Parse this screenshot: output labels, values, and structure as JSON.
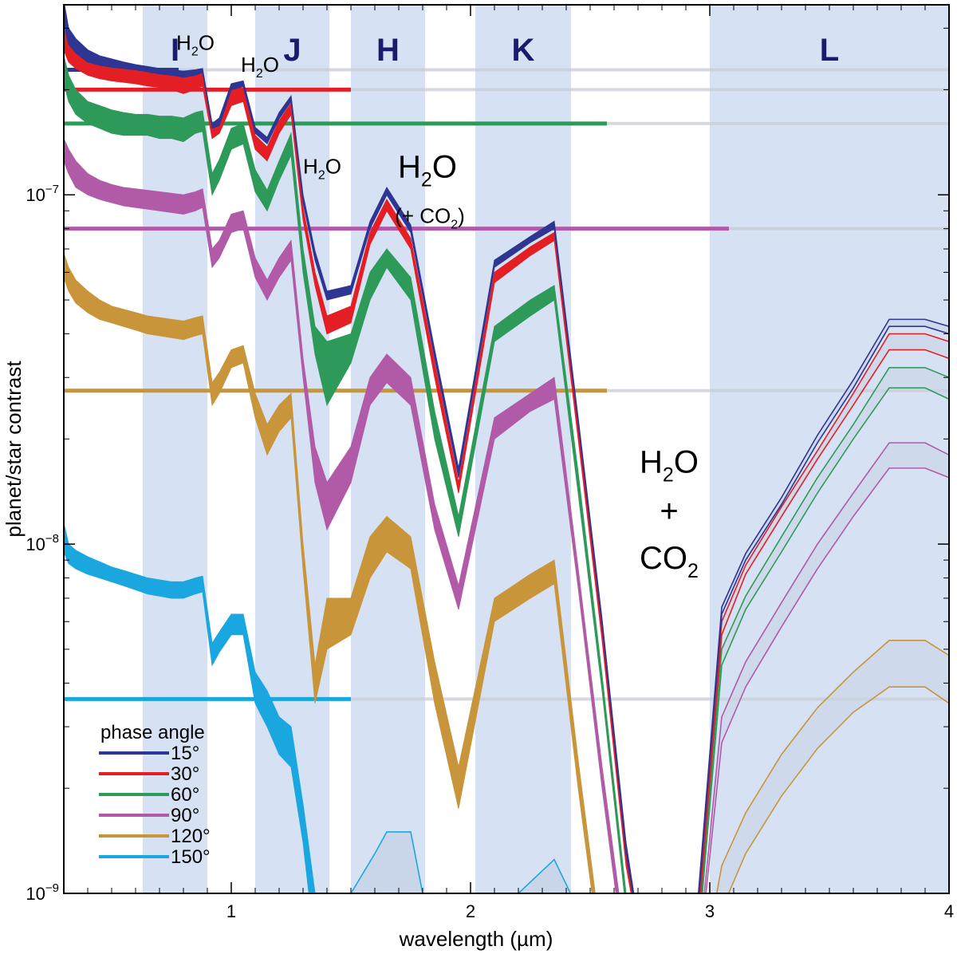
{
  "chart_data": {
    "type": "area",
    "xlabel": "wavelength (µm)",
    "ylabel": "planet/star contrast",
    "xlim": [
      0.3,
      4.0
    ],
    "ylim": [
      1e-09,
      3.5e-07
    ],
    "yscale": "log",
    "x_ticks": [
      "1",
      "2",
      "3",
      "4"
    ],
    "y_ticks": [
      {
        "value": 1e-07,
        "base": "10",
        "exp": "−7"
      },
      {
        "value": 1e-08,
        "base": "10",
        "exp": "−8"
      },
      {
        "value": 1e-09,
        "base": "10",
        "exp": "−9"
      }
    ],
    "bands": [
      {
        "label": "I",
        "x0": 0.63,
        "x1": 0.9
      },
      {
        "label": "J",
        "x0": 1.1,
        "x1": 1.41
      },
      {
        "label": "H",
        "x0": 1.5,
        "x1": 1.81
      },
      {
        "label": "K",
        "x0": 2.02,
        "x1": 2.42
      },
      {
        "label": "L",
        "x0": 3.0,
        "x1": 4.0
      }
    ],
    "annotations": [
      {
        "text": "H",
        "sub": "2",
        "tail": "O",
        "x": 0.85,
        "y": 2.6e-07,
        "size": 26
      },
      {
        "text": "H",
        "sub": "2",
        "tail": "O",
        "x": 1.12,
        "y": 2.25e-07,
        "size": 26
      },
      {
        "text": "H",
        "sub": "2",
        "tail": "O",
        "x": 1.38,
        "y": 1.15e-07,
        "size": 26
      },
      {
        "text": "H",
        "sub": "2",
        "tail": "O",
        "x": 1.82,
        "y": 1.12e-07,
        "size": 40
      },
      {
        "text": "(+ CO",
        "sub": "2",
        "tail": ")",
        "x": 1.83,
        "y": 8.3e-08,
        "size": 26
      },
      {
        "text": "H",
        "sub": "2",
        "tail": "O",
        "x": 2.83,
        "y": 1.6e-08,
        "size": 40
      },
      {
        "text": "+",
        "sub": "",
        "tail": "",
        "x": 2.83,
        "y": 1.16e-08,
        "size": 40
      },
      {
        "text": "CO",
        "sub": "2",
        "tail": "",
        "x": 2.83,
        "y": 8.5e-09,
        "size": 40
      }
    ],
    "legend_title": "phase angle",
    "x": [
      0.3,
      0.32,
      0.35,
      0.4,
      0.45,
      0.5,
      0.55,
      0.6,
      0.65,
      0.7,
      0.75,
      0.8,
      0.85,
      0.88,
      0.92,
      0.95,
      1.0,
      1.05,
      1.1,
      1.15,
      1.2,
      1.25,
      1.3,
      1.35,
      1.4,
      1.5,
      1.58,
      1.65,
      1.75,
      1.85,
      1.95,
      2.1,
      2.25,
      2.35,
      2.45,
      2.55,
      2.65,
      2.75,
      2.85,
      2.95,
      3.05,
      3.15,
      3.3,
      3.45,
      3.6,
      3.75,
      3.9,
      4.0
    ],
    "series": [
      {
        "name": "15°",
        "color": "#2e3592",
        "thin": false,
        "ceil": 2.28e-07,
        "clip": 0.78,
        "low": [
          3.1e-07,
          2.7e-07,
          2.55e-07,
          2.4e-07,
          2.35e-07,
          2.32e-07,
          2.3e-07,
          2.28e-07,
          2.25e-07,
          2.22e-07,
          2.2e-07,
          2.17e-07,
          2.2e-07,
          2.24e-07,
          1.55e-07,
          1.58e-07,
          2e-07,
          2.04e-07,
          1.5e-07,
          1.4e-07,
          1.65e-07,
          1.85e-07,
          9.5e-08,
          6.5e-08,
          5e-08,
          5.2e-08,
          8e-08,
          1e-07,
          7.8e-08,
          3.4e-08,
          1.55e-08,
          6.2e-08,
          7.3e-08,
          8e-08,
          2.2e-08,
          5.8e-09,
          1.3e-09,
          5e-10,
          5e-10,
          9e-10,
          6.3e-09,
          9e-09,
          1.3e-08,
          1.95e-08,
          2.8e-08,
          4.2e-08,
          4.2e-08,
          4e-08
        ],
        "high": [
          3.6e-07,
          3e-07,
          2.8e-07,
          2.6e-07,
          2.5e-07,
          2.45e-07,
          2.4e-07,
          2.36e-07,
          2.33e-07,
          2.3e-07,
          2.28e-07,
          2.26e-07,
          2.28e-07,
          2.3e-07,
          1.6e-07,
          1.66e-07,
          2.08e-07,
          2.12e-07,
          1.56e-07,
          1.46e-07,
          1.72e-07,
          1.92e-07,
          1e-07,
          6.9e-08,
          5.3e-08,
          5.5e-08,
          8.4e-08,
          1.05e-07,
          8.2e-08,
          3.6e-08,
          1.65e-08,
          6.5e-08,
          7.6e-08,
          8.4e-08,
          2.3e-08,
          6.1e-09,
          1.4e-09,
          5e-10,
          5e-10,
          9.5e-10,
          6.6e-09,
          9.4e-09,
          1.36e-08,
          2.05e-08,
          2.95e-08,
          4.4e-08,
          4.4e-08,
          4.2e-08
        ]
      },
      {
        "name": "30°",
        "color": "#e31e24",
        "thin": false,
        "ceil": 2e-07,
        "clip": 1.5,
        "low": [
          2.6e-07,
          2.4e-07,
          2.3e-07,
          2.2e-07,
          2.15e-07,
          2.12e-07,
          2.1e-07,
          2.08e-07,
          2.05e-07,
          2.03e-07,
          2e-07,
          1.95e-07,
          2e-07,
          2.05e-07,
          1.45e-07,
          1.5e-07,
          1.8e-07,
          1.85e-07,
          1.35e-07,
          1.25e-07,
          1.5e-07,
          1.7e-07,
          8.5e-08,
          5.5e-08,
          4e-08,
          4.3e-08,
          7.2e-08,
          9e-08,
          7e-08,
          3e-08,
          1.4e-08,
          5.6e-08,
          6.7e-08,
          7.4e-08,
          2e-08,
          5.3e-09,
          1.2e-09,
          5e-10,
          5e-10,
          8e-10,
          5.5e-09,
          8.2e-09,
          1.2e-08,
          1.75e-08,
          2.5e-08,
          3.6e-08,
          3.6e-08,
          3.4e-08
        ],
        "high": [
          3e-07,
          2.75e-07,
          2.6e-07,
          2.45e-07,
          2.4e-07,
          2.35e-07,
          2.32e-07,
          2.3e-07,
          2.27e-07,
          2.25e-07,
          2.22e-07,
          2.17e-07,
          2.22e-07,
          2.25e-07,
          1.58e-07,
          1.62e-07,
          1.98e-07,
          2.02e-07,
          1.48e-07,
          1.37e-07,
          1.63e-07,
          1.83e-07,
          9.2e-08,
          6e-08,
          4.5e-08,
          4.8e-08,
          7.8e-08,
          9.7e-08,
          7.5e-08,
          3.3e-08,
          1.5e-08,
          6e-08,
          7.1e-08,
          7.8e-08,
          2.15e-08,
          5.7e-09,
          1.3e-09,
          5e-10,
          5e-10,
          8.5e-10,
          6e-09,
          8.7e-09,
          1.28e-08,
          1.85e-08,
          2.7e-08,
          4e-08,
          4e-08,
          3.8e-08
        ]
      },
      {
        "name": "60°",
        "color": "#2e9a5a",
        "thin": false,
        "ceil": 1.6e-07,
        "clip": 2.57,
        "low": [
          2.1e-07,
          1.85e-07,
          1.7e-07,
          1.6e-07,
          1.55e-07,
          1.5e-07,
          1.48e-07,
          1.48e-07,
          1.48e-07,
          1.45e-07,
          1.45e-07,
          1.42e-07,
          1.5e-07,
          1.52e-07,
          1e-07,
          1.1e-07,
          1.35e-07,
          1.4e-07,
          1.02e-07,
          9e-08,
          1.1e-07,
          1.3e-07,
          6e-08,
          3.5e-08,
          2.5e-08,
          3.3e-08,
          5e-08,
          6.2e-08,
          5e-08,
          2e-08,
          1.05e-08,
          3.8e-08,
          4.5e-08,
          5e-08,
          1.4e-08,
          3.8e-09,
          9e-10,
          5e-10,
          5e-10,
          7e-10,
          4.5e-09,
          6.5e-09,
          9.5e-09,
          1.4e-08,
          2e-08,
          2.8e-08,
          2.8e-08,
          2.6e-08
        ],
        "high": [
          2.5e-07,
          2.2e-07,
          2e-07,
          1.85e-07,
          1.8e-07,
          1.75e-07,
          1.72e-07,
          1.7e-07,
          1.7e-07,
          1.68e-07,
          1.68e-07,
          1.66e-07,
          1.72e-07,
          1.74e-07,
          1.15e-07,
          1.26e-07,
          1.55e-07,
          1.6e-07,
          1.18e-07,
          1.03e-07,
          1.25e-07,
          1.5e-07,
          7e-08,
          4.2e-08,
          3.8e-08,
          4e-08,
          6e-08,
          7e-08,
          5.8e-08,
          2.4e-08,
          1.2e-08,
          4.2e-08,
          5e-08,
          5.5e-08,
          1.6e-08,
          4.2e-09,
          1e-09,
          5e-10,
          5e-10,
          7.5e-10,
          5e-09,
          7.1e-09,
          1.05e-08,
          1.55e-08,
          2.2e-08,
          3.2e-08,
          3.2e-08,
          3e-08
        ]
      },
      {
        "name": "90°",
        "color": "#b05aa8",
        "thin": false,
        "ceil": 8e-08,
        "clip": 3.08,
        "low": [
          1.25e-07,
          1.15e-07,
          1.05e-07,
          1e-07,
          9.7e-08,
          9.5e-08,
          9.3e-08,
          9.2e-08,
          9.1e-08,
          9e-08,
          8.9e-08,
          8.8e-08,
          9e-08,
          9.2e-08,
          6.2e-08,
          6.6e-08,
          7.8e-08,
          8e-08,
          5.8e-08,
          5e-08,
          5.8e-08,
          6.5e-08,
          3e-08,
          1.5e-08,
          1.1e-08,
          1.5e-08,
          2.5e-08,
          2.9e-08,
          2.5e-08,
          1.1e-08,
          6.5e-09,
          2e-08,
          2.4e-08,
          2.6e-08,
          7.5e-09,
          2e-09,
          6e-10,
          5e-10,
          5e-10,
          6e-10,
          2.7e-09,
          3.9e-09,
          5.8e-09,
          8.5e-09,
          1.2e-08,
          1.65e-08,
          1.65e-08,
          1.55e-08
        ],
        "high": [
          1.45e-07,
          1.35e-07,
          1.25e-07,
          1.15e-07,
          1.1e-07,
          1.07e-07,
          1.05e-07,
          1.04e-07,
          1.03e-07,
          1.02e-07,
          1.01e-07,
          1e-07,
          1.02e-07,
          1.04e-07,
          7e-08,
          7.4e-08,
          8.8e-08,
          9e-08,
          6.6e-08,
          5.7e-08,
          6.6e-08,
          7.4e-08,
          3.4e-08,
          1.9e-08,
          1.5e-08,
          1.9e-08,
          3e-08,
          3.5e-08,
          3e-08,
          1.3e-08,
          7.6e-09,
          2.3e-08,
          2.7e-08,
          3e-08,
          8.5e-09,
          2.3e-09,
          7e-10,
          5e-10,
          5e-10,
          6.5e-10,
          3.2e-09,
          4.6e-09,
          6.8e-09,
          1e-08,
          1.4e-08,
          1.95e-08,
          1.95e-08,
          1.8e-08
        ]
      },
      {
        "name": "120°",
        "color": "#c8953a",
        "thin": false,
        "ceil": 2.75e-08,
        "clip": 2.57,
        "low": [
          5.8e-08,
          5.3e-08,
          4.9e-08,
          4.6e-08,
          4.4e-08,
          4.3e-08,
          4.2e-08,
          4.1e-08,
          4e-08,
          3.95e-08,
          3.9e-08,
          3.85e-08,
          3.95e-08,
          4e-08,
          2.5e-08,
          2.7e-08,
          3.2e-08,
          3.3e-08,
          2.3e-08,
          1.8e-08,
          2.1e-08,
          2.3e-08,
          8.5e-09,
          3.5e-09,
          5e-09,
          5.5e-09,
          8e-09,
          9.5e-09,
          8.5e-09,
          3.5e-09,
          1.75e-09,
          6e-09,
          7e-09,
          7.7e-09,
          2e-09,
          6e-10,
          5e-10,
          5e-10,
          5e-10,
          5e-10,
          9e-10,
          1.3e-09,
          1.9e-09,
          2.6e-09,
          3.3e-09,
          3.9e-09,
          3.9e-09,
          3.5e-09
        ],
        "high": [
          6.8e-08,
          6.2e-08,
          5.7e-08,
          5.3e-08,
          5e-08,
          4.8e-08,
          4.7e-08,
          4.6e-08,
          4.5e-08,
          4.45e-08,
          4.4e-08,
          4.35e-08,
          4.45e-08,
          4.5e-08,
          2.9e-08,
          3.1e-08,
          3.6e-08,
          3.7e-08,
          2.7e-08,
          2.2e-08,
          2.5e-08,
          2.7e-08,
          1e-08,
          4.5e-09,
          7e-09,
          7e-09,
          1.05e-08,
          1.2e-08,
          1.05e-08,
          4.6e-09,
          2.3e-09,
          7e-09,
          8.2e-09,
          9e-09,
          2.4e-09,
          7e-10,
          5e-10,
          5e-10,
          5e-10,
          5e-10,
          1.2e-09,
          1.7e-09,
          2.5e-09,
          3.4e-09,
          4.3e-09,
          5.3e-09,
          5.3e-09,
          4.8e-09
        ]
      },
      {
        "name": "150°",
        "color": "#1aa7e0",
        "thin": false,
        "ceil": 3.6e-09,
        "clip": 1.5,
        "low": [
          9.5e-09,
          8.8e-09,
          8.5e-09,
          8.2e-09,
          8e-09,
          7.8e-09,
          7.6e-09,
          7.4e-09,
          7.2e-09,
          7.1e-09,
          7e-09,
          7e-09,
          7.2e-09,
          7.3e-09,
          4.5e-09,
          4.9e-09,
          5.5e-09,
          5.5e-09,
          3.5e-09,
          3e-09,
          2.5e-09,
          2.3e-09,
          1.4e-09,
          7e-10,
          5e-10,
          5e-10,
          5e-10,
          5e-10,
          5e-10,
          5e-10,
          5e-10,
          5e-10,
          5e-10,
          5e-10,
          5e-10,
          5e-10,
          5e-10,
          5e-10,
          5e-10,
          5e-10,
          5e-10,
          5e-10,
          5e-10,
          5e-10,
          5e-10,
          5e-10,
          5e-10,
          5e-10
        ],
        "high": [
          1.15e-08,
          1e-08,
          9.6e-09,
          9.2e-09,
          8.9e-09,
          8.6e-09,
          8.4e-09,
          8.2e-09,
          8e-09,
          7.9e-09,
          7.8e-09,
          7.8e-09,
          8e-09,
          8.1e-09,
          5.2e-09,
          5.6e-09,
          6.3e-09,
          6.3e-09,
          4.3e-09,
          3.8e-09,
          3.2e-09,
          3e-09,
          1.8e-09,
          1e-09,
          7e-10,
          5e-10,
          5e-10,
          5e-10,
          5e-10,
          5e-10,
          5e-10,
          5e-10,
          5e-10,
          5e-10,
          5e-10,
          5e-10,
          5e-10,
          5e-10,
          5e-10,
          5e-10,
          5e-10,
          5e-10,
          5e-10,
          5e-10,
          5e-10,
          5e-10,
          5e-10,
          5e-10
        ]
      }
    ],
    "faint_series": {
      "x": [
        1.5,
        1.6,
        1.65,
        1.75,
        1.8,
        2.0,
        2.2,
        2.35,
        2.45
      ],
      "values": [
        1e-09,
        1.3e-09,
        1.5e-09,
        1.5e-09,
        1e-09,
        8e-10,
        1e-09,
        1.25e-09,
        9e-10
      ]
    }
  }
}
